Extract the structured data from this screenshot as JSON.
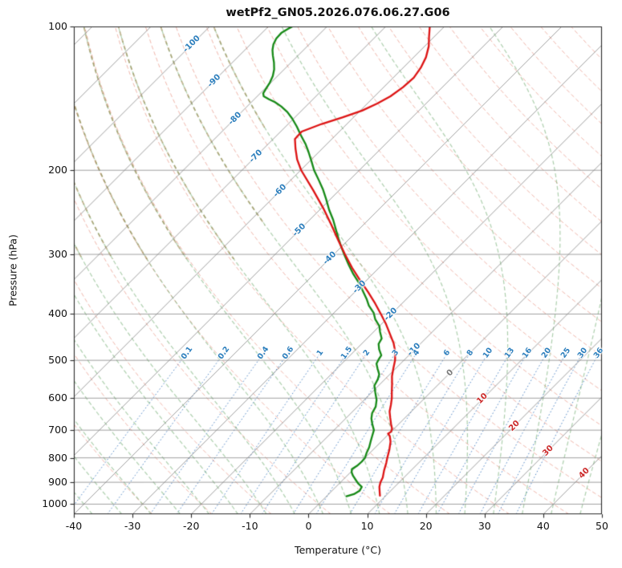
{
  "chart_data": {
    "type": "line",
    "variant": "skew-t-log-p",
    "title": "wetPf2_GN05.2026.076.06.27.G06",
    "xlabel": "Temperature (°C)",
    "ylabel": "Pressure (hPa)",
    "xlim": [
      -40,
      50
    ],
    "plim": [
      1050,
      100
    ],
    "x_ticks": [
      -40,
      -30,
      -20,
      -10,
      0,
      10,
      20,
      30,
      40,
      50
    ],
    "p_ticks": [
      100,
      200,
      300,
      400,
      500,
      600,
      700,
      800,
      900,
      1000
    ],
    "skew_deg": 45,
    "grid": true,
    "isotherms": {
      "start_c": -120,
      "end_c": 50,
      "step_c": 10,
      "labeled_values": [
        -100,
        -90,
        -80,
        -70,
        -60,
        -50,
        -40,
        -30,
        -20,
        -10,
        0,
        10,
        20,
        30,
        40
      ],
      "label_pressures": [
        109,
        130,
        156,
        187,
        221,
        267,
        306,
        351,
        401,
        475,
        531,
        602,
        686,
        774,
        862
      ]
    },
    "dry_adiabats": {
      "start_c": -30,
      "end_c": 190,
      "step_c": 10
    },
    "moist_adiabats": {
      "start_c": -40,
      "end_c": 50,
      "step_c": 5
    },
    "mixing_ratios": [
      0.1,
      0.2,
      0.4,
      0.6,
      1,
      1.5,
      2,
      3,
      4,
      6,
      8,
      10,
      13,
      16,
      20,
      25,
      30,
      36
    ],
    "mixing_label_pressure": 483,
    "mixing_top_pressure": 480,
    "series": [
      {
        "name": "temperature",
        "color": "#dd1414",
        "points": [
          [
            960,
            9.0
          ],
          [
            940,
            8.2
          ],
          [
            920,
            7.4
          ],
          [
            900,
            6.8
          ],
          [
            880,
            6.4
          ],
          [
            850,
            5.4
          ],
          [
            820,
            4.5
          ],
          [
            800,
            3.8
          ],
          [
            770,
            2.8
          ],
          [
            740,
            1.6
          ],
          [
            720,
            0.5
          ],
          [
            712,
            -0.2
          ],
          [
            706,
            0.0
          ],
          [
            696,
            -0.3
          ],
          [
            680,
            -1.3
          ],
          [
            660,
            -2.5
          ],
          [
            640,
            -3.7
          ],
          [
            620,
            -4.6
          ],
          [
            600,
            -5.6
          ],
          [
            580,
            -6.8
          ],
          [
            560,
            -8.0
          ],
          [
            540,
            -9.3
          ],
          [
            520,
            -10.4
          ],
          [
            500,
            -11.5
          ],
          [
            480,
            -12.9
          ],
          [
            460,
            -14.7
          ],
          [
            440,
            -16.9
          ],
          [
            420,
            -19.2
          ],
          [
            400,
            -21.8
          ],
          [
            380,
            -24.6
          ],
          [
            360,
            -27.7
          ],
          [
            340,
            -31.1
          ],
          [
            320,
            -34.6
          ],
          [
            300,
            -38.1
          ],
          [
            280,
            -41.7
          ],
          [
            260,
            -45.5
          ],
          [
            240,
            -49.7
          ],
          [
            220,
            -54.5
          ],
          [
            200,
            -59.9
          ],
          [
            190,
            -62.4
          ],
          [
            180,
            -64.6
          ],
          [
            172,
            -66.3
          ],
          [
            166,
            -66.4
          ],
          [
            160,
            -64.3
          ],
          [
            155,
            -61.9
          ],
          [
            150,
            -59.7
          ],
          [
            145,
            -58.3
          ],
          [
            140,
            -57.3
          ],
          [
            134,
            -56.7
          ],
          [
            128,
            -56.5
          ],
          [
            122,
            -57.0
          ],
          [
            116,
            -57.9
          ],
          [
            110,
            -59.3
          ],
          [
            105,
            -60.9
          ],
          [
            100,
            -62.5
          ]
        ]
      },
      {
        "name": "dewpoint",
        "color": "#178a17",
        "points": [
          [
            963,
            3.4
          ],
          [
            953,
            4.3
          ],
          [
            938,
            4.7
          ],
          [
            920,
            4.4
          ],
          [
            905,
            3.2
          ],
          [
            890,
            2.2
          ],
          [
            872,
            1.0
          ],
          [
            858,
            0.2
          ],
          [
            845,
            -0.3
          ],
          [
            832,
            0.0
          ],
          [
            815,
            0.1
          ],
          [
            800,
            0.0
          ],
          [
            780,
            -0.6
          ],
          [
            760,
            -1.1
          ],
          [
            740,
            -1.8
          ],
          [
            720,
            -2.5
          ],
          [
            700,
            -3.2
          ],
          [
            680,
            -4.5
          ],
          [
            662,
            -5.6
          ],
          [
            645,
            -6.4
          ],
          [
            625,
            -6.9
          ],
          [
            605,
            -7.9
          ],
          [
            585,
            -9.3
          ],
          [
            565,
            -10.7
          ],
          [
            548,
            -11.2
          ],
          [
            535,
            -11.8
          ],
          [
            520,
            -13.1
          ],
          [
            508,
            -14.1
          ],
          [
            496,
            -14.5
          ],
          [
            488,
            -14.7
          ],
          [
            474,
            -16.1
          ],
          [
            462,
            -17.1
          ],
          [
            450,
            -17.5
          ],
          [
            436,
            -18.9
          ],
          [
            424,
            -20.0
          ],
          [
            410,
            -21.9
          ],
          [
            398,
            -23.2
          ],
          [
            384,
            -25.3
          ],
          [
            372,
            -26.8
          ],
          [
            358,
            -28.8
          ],
          [
            344,
            -30.9
          ],
          [
            330,
            -33.3
          ],
          [
            316,
            -35.6
          ],
          [
            302,
            -37.9
          ],
          [
            290,
            -39.9
          ],
          [
            278,
            -41.9
          ],
          [
            266,
            -43.9
          ],
          [
            254,
            -46.0
          ],
          [
            242,
            -48.4
          ],
          [
            230,
            -50.7
          ],
          [
            219,
            -53.0
          ],
          [
            209,
            -55.4
          ],
          [
            200,
            -57.7
          ],
          [
            191,
            -59.8
          ],
          [
            183,
            -61.8
          ],
          [
            176,
            -63.7
          ],
          [
            169,
            -65.9
          ],
          [
            162,
            -68.1
          ],
          [
            156,
            -70.2
          ],
          [
            151,
            -72.2
          ],
          [
            147,
            -74.2
          ],
          [
            144,
            -76.0
          ],
          [
            142,
            -77.5
          ],
          [
            140,
            -78.9
          ],
          [
            138,
            -79.5
          ],
          [
            135,
            -79.8
          ],
          [
            131,
            -80.2
          ],
          [
            127,
            -80.8
          ],
          [
            123,
            -81.7
          ],
          [
            119,
            -82.9
          ],
          [
            115,
            -84.3
          ],
          [
            112,
            -85.3
          ],
          [
            109,
            -86.1
          ],
          [
            106,
            -86.6
          ],
          [
            103,
            -86.7
          ],
          [
            101,
            -86.2
          ],
          [
            100,
            -85.9
          ]
        ]
      }
    ],
    "colors": {
      "isotherm": "rgba(130,130,130,0.85)",
      "pressure_grid": "rgba(130,130,130,0.85)",
      "dry_adiabat": "rgba(222,95,72,0.45)",
      "moist_adiabat": "rgba(62,142,62,0.42)",
      "moist_adiabat_cold": "rgba(148,126,64,0.55)",
      "mixing_line": "rgba(44,110,186,0.8)",
      "label_negative": "#2d7fbd",
      "label_zero": "#7a7a7a",
      "label_positive": "#cc2a2a",
      "spine": "#2b2b2b",
      "tick": "#2b2b2b"
    }
  }
}
